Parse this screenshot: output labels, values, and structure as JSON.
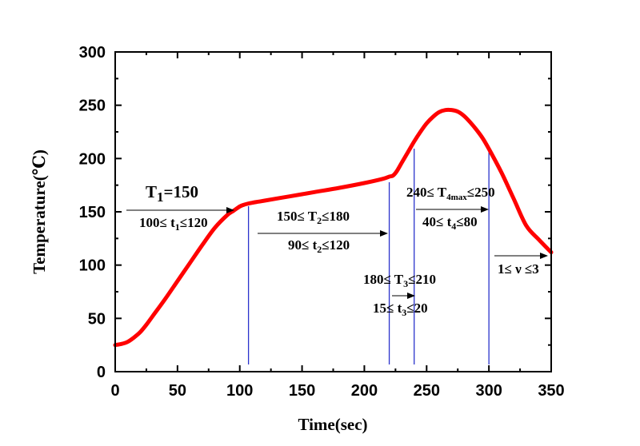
{
  "chart_data": {
    "type": "line",
    "xlabel": "Time(sec)",
    "ylabel": "Temperature(℃)",
    "xlim": [
      0,
      350
    ],
    "ylim": [
      0,
      300
    ],
    "xticks": [
      "0",
      "50",
      "100",
      "150",
      "200",
      "250",
      "300",
      "350"
    ],
    "yticks": [
      "0",
      "50",
      "100",
      "150",
      "200",
      "250",
      "300"
    ],
    "grid": false,
    "series": [
      {
        "color": "#ff0000",
        "x": [
          0,
          5,
          10,
          15,
          20,
          25,
          30,
          40,
          50,
          60,
          70,
          80,
          90,
          95,
          100,
          103,
          106,
          110,
          115,
          120,
          140,
          160,
          180,
          200,
          215,
          220,
          223,
          226,
          230,
          235,
          240,
          245,
          250,
          255,
          260,
          265,
          270,
          275,
          280,
          285,
          290,
          295,
          300,
          310,
          320,
          330,
          340,
          350
        ],
        "y": [
          25,
          26,
          28,
          32,
          37,
          44,
          52,
          68,
          85,
          102,
          119,
          135,
          147,
          151,
          155,
          156.5,
          157.5,
          158.5,
          159.5,
          160.5,
          164.5,
          168.5,
          172.5,
          177,
          181,
          183,
          184,
          188,
          196,
          206,
          216,
          225,
          233,
          239,
          243.5,
          245.5,
          245.5,
          244,
          240,
          234,
          227,
          219,
          209,
          187,
          162,
          137,
          124,
          112
        ]
      }
    ],
    "vlines": [
      107,
      220,
      240,
      300
    ],
    "annotations": {
      "t1": {
        "label": "T",
        "sub": "1",
        "rest": "=150",
        "range": "100≤ t",
        "range_sub": "1",
        "range_rest": "≤120"
      },
      "t2": {
        "pre": "150≤ T",
        "sub": "2",
        "rest": "≤180",
        "range": "90≤ t",
        "range_sub": "2",
        "range_rest": "≤120"
      },
      "t3": {
        "pre": "180≤ T",
        "sub": "3",
        "rest": "≤210",
        "range": "15≤ t",
        "range_sub": "3",
        "range_rest": "≤20"
      },
      "t4": {
        "pre": "240≤ T",
        "sub": "4max",
        "rest": "≤250",
        "range": "40≤ t",
        "range_sub": "4",
        "range_rest": "≤80"
      },
      "v": {
        "label": "1≤ ν ≤3"
      }
    },
    "colors": {
      "curve": "#ff0000",
      "vline": "#2a33cc",
      "axis": "#000000"
    }
  }
}
